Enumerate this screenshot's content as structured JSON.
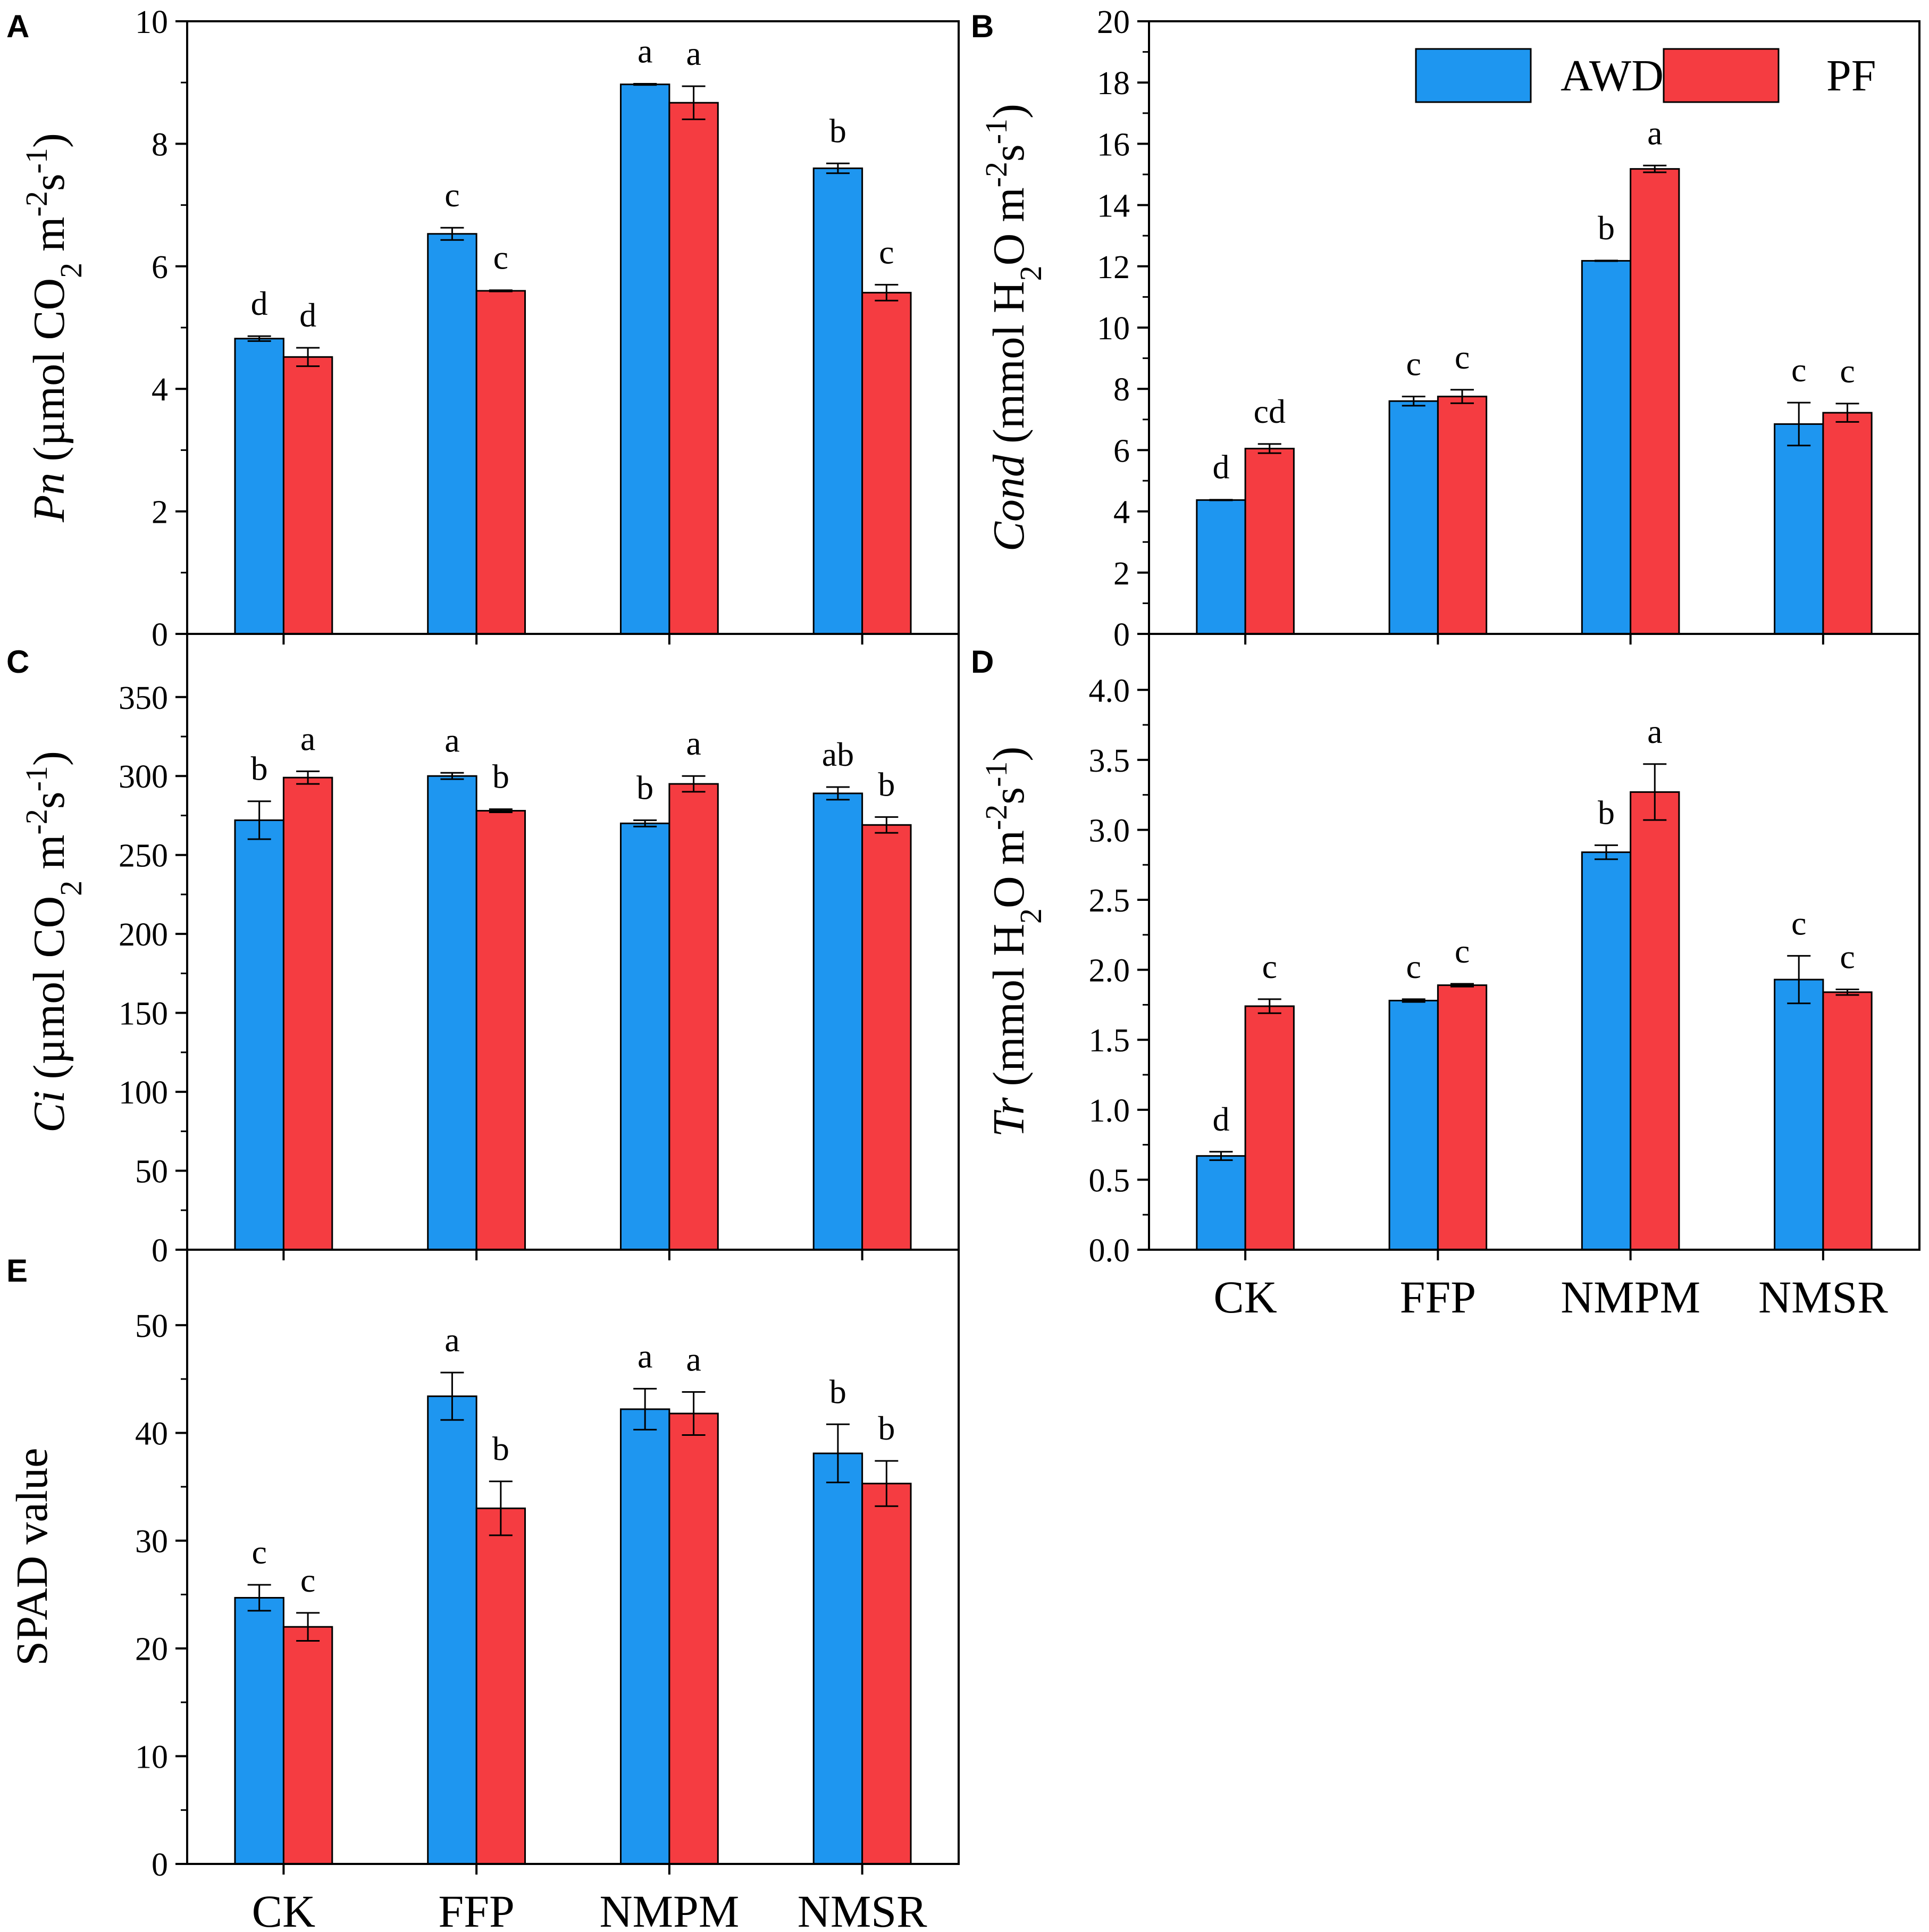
{
  "colors": {
    "AWD": "#1e96f0",
    "PF": "#f53c41"
  },
  "legend": {
    "awd_label": "AWD",
    "pf_label": "PF"
  },
  "chart_data": [
    {
      "panel": "A",
      "type": "bar",
      "categories": [
        "CK",
        "FFP",
        "NMPM",
        "NMSR"
      ],
      "ylabel_italic": "Pn",
      "ylabel_rest": " (µmol CO",
      "ylabel_sub": "2",
      "ylabel_mid": " m",
      "ylabel_sup1": "-2",
      "ylabel_mid2": "s",
      "ylabel_sup2": "-1",
      "ylabel_end": ")",
      "ylim": [
        0,
        10
      ],
      "yticks": [
        0,
        2,
        4,
        6,
        8,
        10
      ],
      "series": [
        {
          "name": "AWD",
          "values": [
            4.82,
            6.53,
            8.97,
            7.6
          ],
          "errors": [
            0.04,
            0.1,
            0.01,
            0.08
          ],
          "letters": [
            "d",
            "c",
            "a",
            "b"
          ]
        },
        {
          "name": "PF",
          "values": [
            4.52,
            5.6,
            8.67,
            5.57
          ],
          "errors": [
            0.15,
            0.01,
            0.27,
            0.13
          ],
          "letters": [
            "d",
            "c",
            "a",
            "c"
          ]
        }
      ]
    },
    {
      "panel": "B",
      "type": "bar",
      "categories": [
        "CK",
        "FFP",
        "NMPM",
        "NMSR"
      ],
      "ylabel_italic": "Cond",
      "ylabel_rest": " (mmol H",
      "ylabel_sub": "2",
      "ylabel_mid": "O m",
      "ylabel_sup1": "-2",
      "ylabel_mid2": "s",
      "ylabel_sup2": "-1",
      "ylabel_end": ")",
      "ylim": [
        0,
        20
      ],
      "yticks": [
        0,
        2,
        4,
        6,
        8,
        10,
        12,
        14,
        16,
        18,
        20
      ],
      "series": [
        {
          "name": "AWD",
          "values": [
            4.37,
            7.6,
            12.18,
            6.85
          ],
          "errors": [
            0.01,
            0.15,
            0.01,
            0.7
          ],
          "letters": [
            "d",
            "c",
            "b",
            "c"
          ]
        },
        {
          "name": "PF",
          "values": [
            6.05,
            7.75,
            15.18,
            7.22
          ],
          "errors": [
            0.15,
            0.22,
            0.11,
            0.3
          ],
          "letters": [
            "cd",
            "c",
            "a",
            "c"
          ]
        }
      ]
    },
    {
      "panel": "C",
      "type": "bar",
      "categories": [
        "CK",
        "FFP",
        "NMPM",
        "NMSR"
      ],
      "ylabel_italic": "Ci",
      "ylabel_rest": " (µmol CO",
      "ylabel_sub": "2",
      "ylabel_mid": " m",
      "ylabel_sup1": "-2",
      "ylabel_mid2": "s",
      "ylabel_sup2": "-1",
      "ylabel_end": ")",
      "ylim": [
        0,
        390
      ],
      "yticks": [
        0,
        50,
        100,
        150,
        200,
        250,
        300,
        350
      ],
      "series": [
        {
          "name": "AWD",
          "values": [
            272,
            300,
            270,
            289
          ],
          "errors": [
            12,
            2,
            2,
            4
          ],
          "letters": [
            "b",
            "a",
            "b",
            "ab"
          ]
        },
        {
          "name": "PF",
          "values": [
            299,
            278,
            295,
            269
          ],
          "errors": [
            4,
            1,
            5,
            5
          ],
          "letters": [
            "a",
            "b",
            "a",
            "b"
          ]
        }
      ]
    },
    {
      "panel": "D",
      "type": "bar",
      "categories": [
        "CK",
        "FFP",
        "NMPM",
        "NMSR"
      ],
      "ylabel_italic": "Tr",
      "ylabel_rest": " (mmol H",
      "ylabel_sub": "2",
      "ylabel_mid": "O m",
      "ylabel_sup1": "-2",
      "ylabel_mid2": "s",
      "ylabel_sup2": "-1",
      "ylabel_end": ")",
      "ylim": [
        0,
        4.4
      ],
      "yticks": [
        0.0,
        0.5,
        1.0,
        1.5,
        2.0,
        2.5,
        3.0,
        3.5,
        4.0
      ],
      "tick_format": "1dp",
      "series": [
        {
          "name": "AWD",
          "values": [
            0.67,
            1.78,
            2.84,
            1.93
          ],
          "errors": [
            0.03,
            0.01,
            0.05,
            0.17
          ],
          "letters": [
            "d",
            "c",
            "b",
            "c"
          ]
        },
        {
          "name": "PF",
          "values": [
            1.74,
            1.89,
            3.27,
            1.84
          ],
          "errors": [
            0.05,
            0.01,
            0.2,
            0.02
          ],
          "letters": [
            "c",
            "c",
            "a",
            "c"
          ]
        }
      ]
    },
    {
      "panel": "E",
      "type": "bar",
      "categories": [
        "CK",
        "FFP",
        "NMPM",
        "NMSR"
      ],
      "ylabel_plain": "SPAD value",
      "ylim": [
        0,
        57
      ],
      "yticks": [
        0,
        10,
        20,
        30,
        40,
        50
      ],
      "series": [
        {
          "name": "AWD",
          "values": [
            24.7,
            43.4,
            42.2,
            38.1
          ],
          "errors": [
            1.2,
            2.2,
            1.9,
            2.7
          ],
          "letters": [
            "c",
            "a",
            "a",
            "b"
          ]
        },
        {
          "name": "PF",
          "values": [
            22.0,
            33.0,
            41.8,
            35.3
          ],
          "errors": [
            1.3,
            2.5,
            2.0,
            2.1
          ],
          "letters": [
            "c",
            "b",
            "a",
            "b"
          ]
        }
      ]
    }
  ]
}
